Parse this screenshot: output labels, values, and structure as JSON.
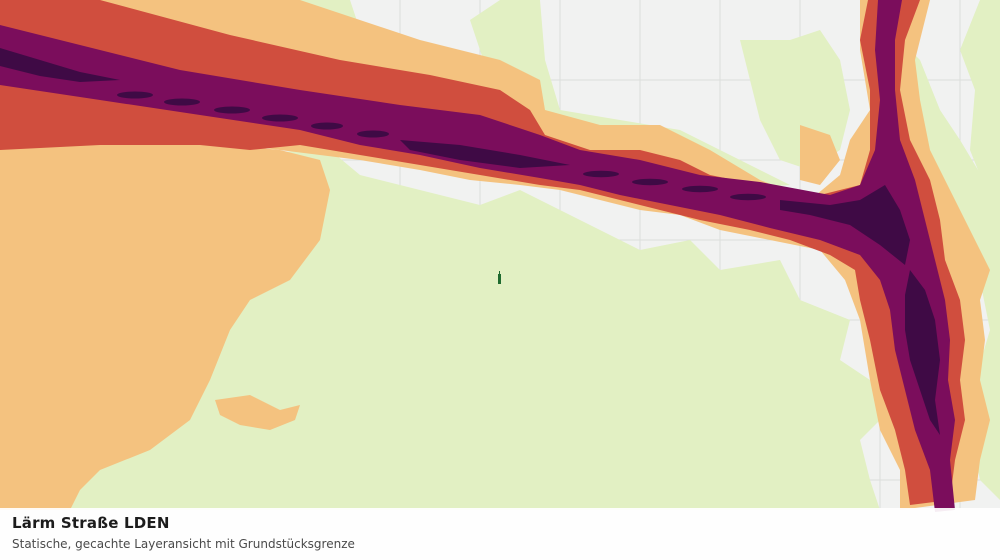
{
  "caption": {
    "title": "Lärm Straße LDEN",
    "subtitle": "Statische, gecachte Layeransicht mit Grundstücksgrenze"
  },
  "map": {
    "layer": "noise-road-lden",
    "colors": {
      "background": "#f1f2f1",
      "grid": "#dcdedc",
      "green_area": "#e2f0c3",
      "noise_band_1": "#f4c27f",
      "noise_band_2": "#d04e3e",
      "noise_band_3": "#7b0d5c",
      "noise_band_4": "#3f0a45",
      "parcel_outline": "#1f6b2f"
    }
  }
}
